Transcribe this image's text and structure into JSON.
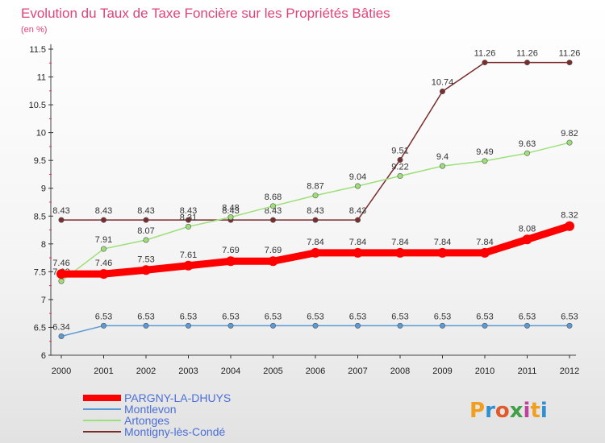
{
  "chart_data": {
    "type": "line",
    "title": "Evolution du Taux de Taxe Foncière sur les Propriétés Bâties",
    "subtitle": "(en %)",
    "x": [
      "2000",
      "2001",
      "2002",
      "2003",
      "2004",
      "2005",
      "2006",
      "2007",
      "2008",
      "2009",
      "2010",
      "2011",
      "2012"
    ],
    "ylim": [
      6,
      11.5
    ],
    "yticks": [
      "6",
      "6.5",
      "7",
      "7.5",
      "8",
      "8.5",
      "9",
      "9.5",
      "10",
      "10.5",
      "11",
      "11.5"
    ],
    "grid": false,
    "legend_position": "bottom-left",
    "series": [
      {
        "name": "PARGNY-LA-DHUYS",
        "color": "#ff0000",
        "values": [
          7.46,
          7.46,
          7.53,
          7.61,
          7.69,
          7.69,
          7.84,
          7.84,
          7.84,
          7.84,
          7.84,
          8.08,
          8.32
        ],
        "labels": [
          "7.46",
          "7.46",
          "7.53",
          "7.61",
          "7.69",
          "7.69",
          "7.84",
          "7.84",
          "7.84",
          "7.84",
          "7.84",
          "8.08",
          "8.32"
        ]
      },
      {
        "name": "Montlevon",
        "color": "#5b9bd5",
        "values": [
          6.34,
          6.53,
          6.53,
          6.53,
          6.53,
          6.53,
          6.53,
          6.53,
          6.53,
          6.53,
          6.53,
          6.53,
          6.53
        ],
        "labels": [
          "6.34",
          "6.53",
          "6.53",
          "6.53",
          "6.53",
          "6.53",
          "6.53",
          "6.53",
          "6.53",
          "6.53",
          "6.53",
          "6.53",
          "6.53"
        ]
      },
      {
        "name": "Artonges",
        "color": "#9de07a",
        "values": [
          7.33,
          7.91,
          8.07,
          8.31,
          8.48,
          8.68,
          8.87,
          9.04,
          9.22,
          9.4,
          9.49,
          9.63,
          9.82
        ],
        "labels": [
          "7.33",
          "7.91",
          "8.07",
          "8.31",
          "8.48",
          "8.68",
          "8.87",
          "9.04",
          "9.22",
          "9.4",
          "9.49",
          "9.63",
          "9.82"
        ]
      },
      {
        "name": "Montigny-lès-Condé",
        "color": "#7b2d2d",
        "values": [
          8.43,
          8.43,
          8.43,
          8.43,
          8.43,
          8.43,
          8.43,
          8.43,
          9.51,
          10.74,
          11.26,
          11.26,
          11.26
        ],
        "labels": [
          "8.43",
          "8.43",
          "8.43",
          "8.43",
          "8.43",
          "8.43",
          "8.43",
          "8.43",
          "9.51",
          "10.74",
          "11.26",
          "11.26",
          "11.26"
        ]
      }
    ]
  },
  "logo": {
    "text": "Proxiti",
    "letters": [
      "P",
      "r",
      "o",
      "x",
      "i",
      "t",
      "i"
    ],
    "colors": [
      "#f0a020",
      "#2f8fd0",
      "#e05a2a",
      "#40a048",
      "#c040a0",
      "#f0a020",
      "#2f8fd0"
    ]
  }
}
